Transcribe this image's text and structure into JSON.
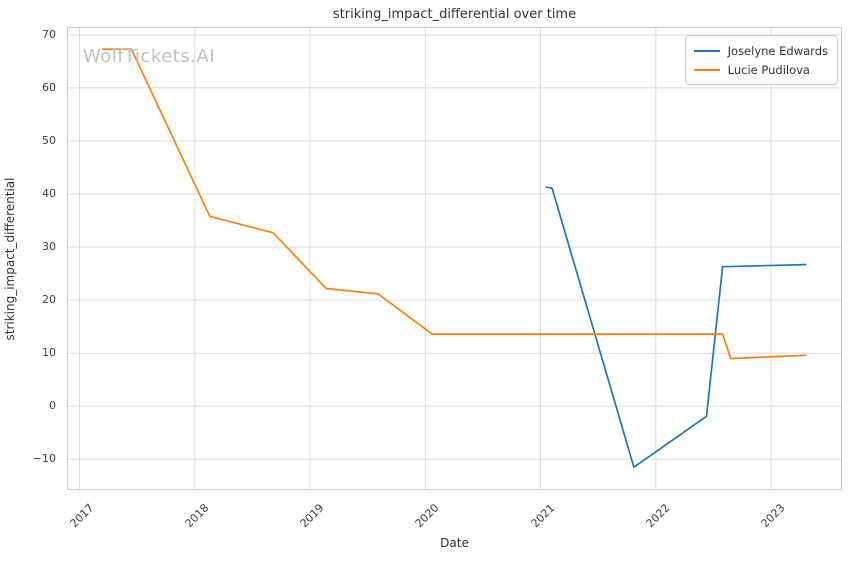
{
  "chart_data": {
    "type": "line",
    "title": "striking_impact_differential over time",
    "xlabel": "Date",
    "ylabel": "striking_impact_differential",
    "watermark": "WolfTickets.AI",
    "grid": true,
    "legend_position": "upper right",
    "xlim": [
      2016.9,
      2023.607
    ],
    "ylim": [
      -15.6,
      71.3
    ],
    "x_ticks": [
      2017,
      2018,
      2019,
      2020,
      2021,
      2022,
      2023
    ],
    "x_tick_labels": [
      "2017",
      "2018",
      "2019",
      "2020",
      "2021",
      "2022",
      "2023"
    ],
    "y_ticks": [
      -10,
      0,
      10,
      20,
      30,
      40,
      50,
      60,
      70
    ],
    "y_tick_labels": [
      "−10",
      "0",
      "10",
      "20",
      "30",
      "40",
      "50",
      "60",
      "70"
    ],
    "colors": {
      "grid": "#dcdcdc",
      "spine": "#cccccc",
      "text": "#333333",
      "watermark": "#bfbfbf",
      "series_blue": "#1f77b4",
      "series_orange": "#ff7f0e"
    },
    "series": [
      {
        "name": "Joselyne Edwards",
        "color": "#1f77b4",
        "points": [
          [
            2021.05,
            41.3
          ],
          [
            2021.1,
            41.1
          ],
          [
            2021.81,
            -11.5
          ],
          [
            2022.44,
            -1.9
          ],
          [
            2022.58,
            26.3
          ],
          [
            2023.3,
            26.7
          ]
        ]
      },
      {
        "name": "Lucie Pudilova",
        "color": "#ff7f0e",
        "points": [
          [
            2017.2,
            67.3
          ],
          [
            2017.45,
            67.3
          ],
          [
            2018.13,
            35.8
          ],
          [
            2018.68,
            32.7
          ],
          [
            2019.14,
            22.2
          ],
          [
            2019.59,
            21.2
          ],
          [
            2020.06,
            13.6
          ],
          [
            2022.58,
            13.6
          ],
          [
            2022.65,
            9.0
          ],
          [
            2023.3,
            9.6
          ]
        ]
      }
    ]
  }
}
